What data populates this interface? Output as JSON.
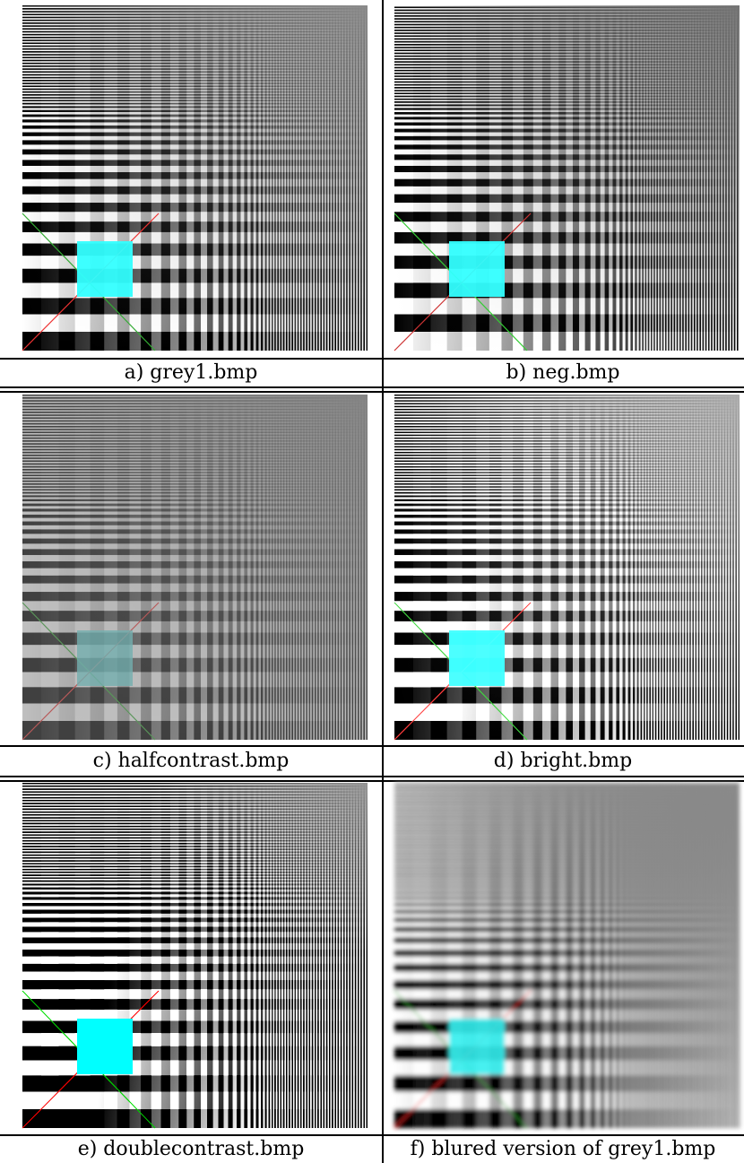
{
  "figure": {
    "panels": [
      {
        "caption": "a) grey1.bmp"
      },
      {
        "caption": "b) neg.bmp"
      },
      {
        "caption": "c) halfcontrast.bmp"
      },
      {
        "caption": "d) bright.bmp"
      },
      {
        "caption": "e) doublecontrast.bmp"
      },
      {
        "caption": "f) blured version of grey1.bmp"
      }
    ]
  }
}
